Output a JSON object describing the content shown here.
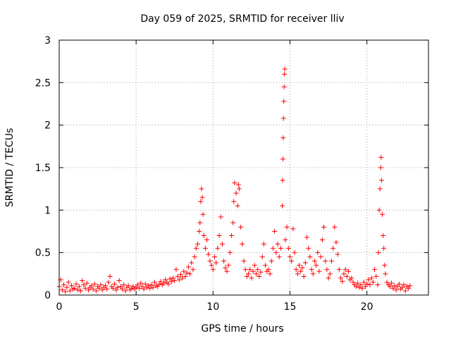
{
  "chart_data": {
    "type": "scatter",
    "title": "Day 059 of 2025, SRMTID for receiver lliv",
    "xlabel": "GPS time / hours",
    "ylabel": "SRMTID / TECUs",
    "xlim": [
      0,
      24
    ],
    "ylim": [
      0,
      3
    ],
    "xticks": [
      0,
      5,
      10,
      15,
      20
    ],
    "yticks": [
      0,
      0.5,
      1,
      1.5,
      2,
      2.5,
      3
    ],
    "xtick_labels": [
      "0",
      "5",
      "10",
      "15",
      "20"
    ],
    "ytick_labels": [
      "0",
      "0.5",
      "1",
      "1.5",
      "2",
      "2.5",
      "3"
    ],
    "grid": true,
    "marker": "+",
    "color": "#ff0000",
    "series": [
      {
        "name": "SRMTID",
        "points": [
          [
            0.0,
            0.1
          ],
          [
            0.1,
            0.18
          ],
          [
            0.2,
            0.06
          ],
          [
            0.3,
            0.12
          ],
          [
            0.4,
            0.04
          ],
          [
            0.5,
            0.09
          ],
          [
            0.6,
            0.15
          ],
          [
            0.7,
            0.05
          ],
          [
            0.8,
            0.11
          ],
          [
            0.9,
            0.07
          ],
          [
            1.0,
            0.08
          ],
          [
            1.1,
            0.13
          ],
          [
            1.2,
            0.06
          ],
          [
            1.3,
            0.1
          ],
          [
            1.4,
            0.05
          ],
          [
            1.5,
            0.17
          ],
          [
            1.6,
            0.12
          ],
          [
            1.7,
            0.08
          ],
          [
            1.8,
            0.14
          ],
          [
            1.9,
            0.06
          ],
          [
            2.0,
            0.09
          ],
          [
            2.1,
            0.11
          ],
          [
            2.2,
            0.07
          ],
          [
            2.3,
            0.13
          ],
          [
            2.4,
            0.05
          ],
          [
            2.5,
            0.1
          ],
          [
            2.6,
            0.08
          ],
          [
            2.7,
            0.12
          ],
          [
            2.8,
            0.06
          ],
          [
            2.9,
            0.09
          ],
          [
            3.0,
            0.11
          ],
          [
            3.1,
            0.07
          ],
          [
            3.2,
            0.15
          ],
          [
            3.3,
            0.22
          ],
          [
            3.4,
            0.1
          ],
          [
            3.5,
            0.08
          ],
          [
            3.6,
            0.13
          ],
          [
            3.7,
            0.06
          ],
          [
            3.8,
            0.09
          ],
          [
            3.9,
            0.17
          ],
          [
            4.0,
            0.1
          ],
          [
            4.1,
            0.07
          ],
          [
            4.2,
            0.12
          ],
          [
            4.3,
            0.05
          ],
          [
            4.4,
            0.09
          ],
          [
            4.5,
            0.11
          ],
          [
            4.6,
            0.06
          ],
          [
            4.7,
            0.08
          ],
          [
            4.8,
            0.1
          ],
          [
            4.9,
            0.07
          ],
          [
            5.0,
            0.09
          ],
          [
            5.1,
            0.12
          ],
          [
            5.2,
            0.08
          ],
          [
            5.3,
            0.14
          ],
          [
            5.4,
            0.1
          ],
          [
            5.5,
            0.07
          ],
          [
            5.6,
            0.13
          ],
          [
            5.7,
            0.09
          ],
          [
            5.8,
            0.11
          ],
          [
            5.9,
            0.08
          ],
          [
            6.0,
            0.12
          ],
          [
            6.1,
            0.09
          ],
          [
            6.2,
            0.15
          ],
          [
            6.3,
            0.11
          ],
          [
            6.4,
            0.1
          ],
          [
            6.5,
            0.13
          ],
          [
            6.6,
            0.16
          ],
          [
            6.7,
            0.12
          ],
          [
            6.8,
            0.14
          ],
          [
            6.9,
            0.18
          ],
          [
            7.0,
            0.15
          ],
          [
            7.1,
            0.13
          ],
          [
            7.2,
            0.19
          ],
          [
            7.3,
            0.16
          ],
          [
            7.4,
            0.2
          ],
          [
            7.5,
            0.17
          ],
          [
            7.6,
            0.3
          ],
          [
            7.7,
            0.22
          ],
          [
            7.8,
            0.18
          ],
          [
            7.9,
            0.24
          ],
          [
            8.0,
            0.2
          ],
          [
            8.1,
            0.28
          ],
          [
            8.2,
            0.22
          ],
          [
            8.3,
            0.26
          ],
          [
            8.4,
            0.33
          ],
          [
            8.5,
            0.25
          ],
          [
            8.6,
            0.38
          ],
          [
            8.7,
            0.3
          ],
          [
            8.8,
            0.45
          ],
          [
            8.9,
            0.55
          ],
          [
            9.0,
            0.6
          ],
          [
            9.1,
            0.75
          ],
          [
            9.15,
            0.85
          ],
          [
            9.2,
            1.1
          ],
          [
            9.25,
            1.25
          ],
          [
            9.3,
            1.15
          ],
          [
            9.35,
            0.95
          ],
          [
            9.4,
            0.7
          ],
          [
            9.5,
            0.55
          ],
          [
            9.6,
            0.65
          ],
          [
            9.7,
            0.48
          ],
          [
            9.8,
            0.4
          ],
          [
            9.9,
            0.35
          ],
          [
            10.0,
            0.3
          ],
          [
            10.1,
            0.45
          ],
          [
            10.2,
            0.38
          ],
          [
            10.3,
            0.55
          ],
          [
            10.4,
            0.7
          ],
          [
            10.5,
            0.92
          ],
          [
            10.6,
            0.6
          ],
          [
            10.7,
            0.4
          ],
          [
            10.8,
            0.32
          ],
          [
            10.9,
            0.28
          ],
          [
            11.0,
            0.35
          ],
          [
            11.1,
            0.5
          ],
          [
            11.2,
            0.7
          ],
          [
            11.3,
            0.85
          ],
          [
            11.35,
            1.1
          ],
          [
            11.4,
            1.32
          ],
          [
            11.5,
            1.2
          ],
          [
            11.6,
            1.05
          ],
          [
            11.65,
            1.3
          ],
          [
            11.7,
            1.25
          ],
          [
            11.8,
            0.8
          ],
          [
            11.9,
            0.6
          ],
          [
            12.0,
            0.4
          ],
          [
            12.1,
            0.3
          ],
          [
            12.2,
            0.22
          ],
          [
            12.3,
            0.25
          ],
          [
            12.4,
            0.3
          ],
          [
            12.5,
            0.2
          ],
          [
            12.6,
            0.28
          ],
          [
            12.7,
            0.35
          ],
          [
            12.8,
            0.25
          ],
          [
            12.9,
            0.3
          ],
          [
            13.0,
            0.22
          ],
          [
            13.1,
            0.27
          ],
          [
            13.2,
            0.45
          ],
          [
            13.3,
            0.6
          ],
          [
            13.4,
            0.35
          ],
          [
            13.5,
            0.28
          ],
          [
            13.6,
            0.3
          ],
          [
            13.7,
            0.25
          ],
          [
            13.8,
            0.4
          ],
          [
            13.9,
            0.55
          ],
          [
            14.0,
            0.75
          ],
          [
            14.1,
            0.5
          ],
          [
            14.2,
            0.6
          ],
          [
            14.3,
            0.45
          ],
          [
            14.4,
            0.55
          ],
          [
            14.5,
            1.05
          ],
          [
            14.52,
            1.35
          ],
          [
            14.54,
            1.6
          ],
          [
            14.56,
            1.85
          ],
          [
            14.58,
            2.08
          ],
          [
            14.6,
            2.28
          ],
          [
            14.62,
            2.45
          ],
          [
            14.64,
            2.6
          ],
          [
            14.66,
            2.66
          ],
          [
            14.7,
            0.65
          ],
          [
            14.8,
            0.8
          ],
          [
            14.9,
            0.55
          ],
          [
            15.0,
            0.45
          ],
          [
            15.1,
            0.4
          ],
          [
            15.2,
            0.78
          ],
          [
            15.3,
            0.5
          ],
          [
            15.4,
            0.3
          ],
          [
            15.5,
            0.25
          ],
          [
            15.6,
            0.35
          ],
          [
            15.7,
            0.28
          ],
          [
            15.8,
            0.32
          ],
          [
            15.9,
            0.22
          ],
          [
            16.0,
            0.38
          ],
          [
            16.1,
            0.68
          ],
          [
            16.2,
            0.55
          ],
          [
            16.3,
            0.45
          ],
          [
            16.4,
            0.3
          ],
          [
            16.5,
            0.25
          ],
          [
            16.6,
            0.4
          ],
          [
            16.7,
            0.35
          ],
          [
            16.8,
            0.5
          ],
          [
            16.9,
            0.28
          ],
          [
            17.0,
            0.45
          ],
          [
            17.1,
            0.65
          ],
          [
            17.2,
            0.8
          ],
          [
            17.3,
            0.4
          ],
          [
            17.4,
            0.3
          ],
          [
            17.5,
            0.2
          ],
          [
            17.6,
            0.25
          ],
          [
            17.7,
            0.4
          ],
          [
            17.8,
            0.55
          ],
          [
            17.9,
            0.8
          ],
          [
            18.0,
            0.62
          ],
          [
            18.1,
            0.48
          ],
          [
            18.2,
            0.3
          ],
          [
            18.3,
            0.2
          ],
          [
            18.4,
            0.16
          ],
          [
            18.5,
            0.25
          ],
          [
            18.6,
            0.3
          ],
          [
            18.7,
            0.22
          ],
          [
            18.8,
            0.28
          ],
          [
            18.9,
            0.18
          ],
          [
            19.0,
            0.2
          ],
          [
            19.1,
            0.15
          ],
          [
            19.2,
            0.12
          ],
          [
            19.3,
            0.1
          ],
          [
            19.4,
            0.14
          ],
          [
            19.5,
            0.09
          ],
          [
            19.6,
            0.12
          ],
          [
            19.7,
            0.08
          ],
          [
            19.8,
            0.15
          ],
          [
            19.9,
            0.1
          ],
          [
            20.0,
            0.13
          ],
          [
            20.1,
            0.18
          ],
          [
            20.2,
            0.12
          ],
          [
            20.3,
            0.2
          ],
          [
            20.4,
            0.15
          ],
          [
            20.5,
            0.3
          ],
          [
            20.6,
            0.22
          ],
          [
            20.7,
            0.12
          ],
          [
            20.75,
            0.5
          ],
          [
            20.8,
            1.0
          ],
          [
            20.85,
            1.25
          ],
          [
            20.9,
            1.5
          ],
          [
            20.92,
            1.62
          ],
          [
            20.95,
            1.35
          ],
          [
            21.0,
            0.95
          ],
          [
            21.05,
            0.7
          ],
          [
            21.1,
            0.55
          ],
          [
            21.15,
            0.35
          ],
          [
            21.2,
            0.25
          ],
          [
            21.3,
            0.15
          ],
          [
            21.4,
            0.12
          ],
          [
            21.5,
            0.1
          ],
          [
            21.6,
            0.14
          ],
          [
            21.7,
            0.08
          ],
          [
            21.8,
            0.11
          ],
          [
            21.9,
            0.06
          ],
          [
            22.0,
            0.1
          ],
          [
            22.1,
            0.13
          ],
          [
            22.2,
            0.07
          ],
          [
            22.3,
            0.09
          ],
          [
            22.4,
            0.12
          ],
          [
            22.5,
            0.05
          ],
          [
            22.6,
            0.1
          ],
          [
            22.7,
            0.08
          ],
          [
            22.8,
            0.11
          ]
        ]
      }
    ]
  }
}
